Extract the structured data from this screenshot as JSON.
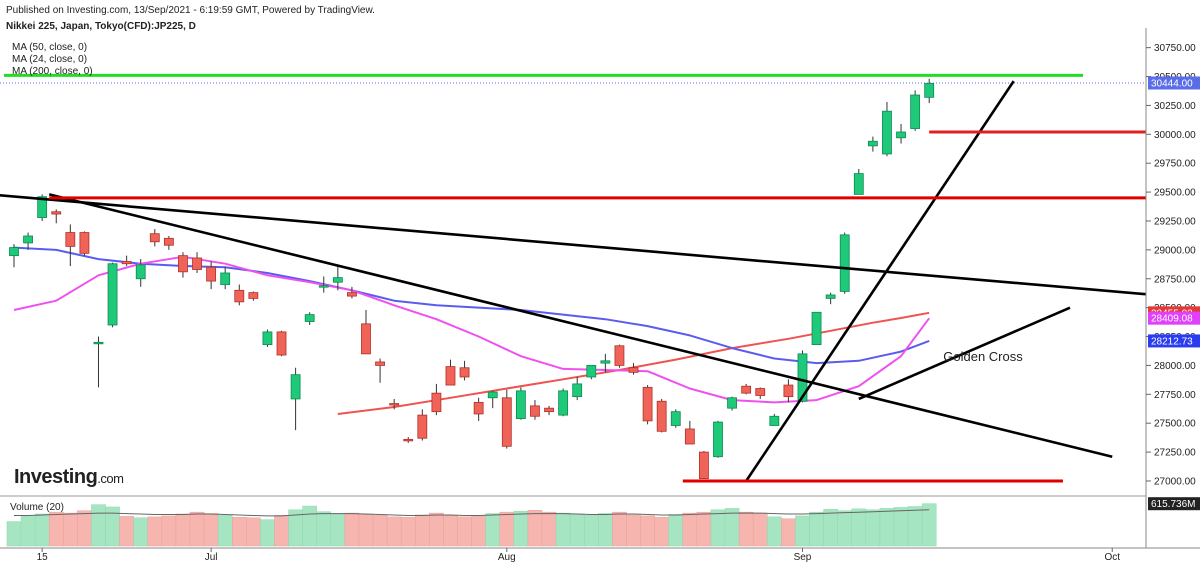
{
  "header": {
    "published": "Published on Investing.com, 13/Sep/2021 - 6:19:59 GMT, Powered by TradingView.",
    "instrument": "Nikkei 225, Japan, Tokyo(CFD):JP225, D"
  },
  "indicators": [
    "MA (50, close, 0)",
    "MA (24, close, 0)",
    "MA (200, close, 0)"
  ],
  "logo": {
    "text": "Investing",
    "suffix": ".com"
  },
  "volume_label": "Volume (20)",
  "chart_data": {
    "type": "candlestick",
    "y_ticks": [
      27000,
      27250,
      27500,
      27750,
      28000,
      28250,
      28500,
      28750,
      29000,
      29250,
      29500,
      29750,
      30000,
      30250,
      30500,
      30750
    ],
    "y_tick_labels": [
      "27000.00",
      "27250.00",
      "27500.00",
      "27750.00",
      "28000.00",
      "28250.00",
      "28500.00",
      "28750.00",
      "29000.00",
      "29250.00",
      "29500.00",
      "29750.00",
      "30000.00",
      "30250.00",
      "30500.00",
      "30750.00"
    ],
    "ylim": [
      26870,
      30920
    ],
    "x_ticks": [
      {
        "label": "15",
        "idx": 2
      },
      {
        "label": "Jul",
        "idx": 14
      },
      {
        "label": "Aug",
        "idx": 35
      },
      {
        "label": "Sep",
        "idx": 56
      },
      {
        "label": "Oct",
        "idx": 78
      }
    ],
    "candles": [
      [
        28950,
        29050,
        28850,
        29020
      ],
      [
        29060,
        29150,
        29000,
        29120
      ],
      [
        29280,
        29480,
        29250,
        29460
      ],
      [
        29330,
        29350,
        29230,
        29310
      ],
      [
        29150,
        29220,
        28860,
        29030
      ],
      [
        29150,
        29160,
        28950,
        28970
      ],
      [
        28200,
        28250,
        27810,
        28200
      ],
      [
        28350,
        28890,
        28330,
        28880
      ],
      [
        28900,
        28950,
        28860,
        28880
      ],
      [
        28750,
        28920,
        28680,
        28870
      ],
      [
        29140,
        29180,
        29030,
        29070
      ],
      [
        29100,
        29120,
        29000,
        29040
      ],
      [
        28950,
        28980,
        28760,
        28810
      ],
      [
        28930,
        28980,
        28800,
        28830
      ],
      [
        28850,
        28900,
        28660,
        28730
      ],
      [
        28700,
        28850,
        28660,
        28800
      ],
      [
        28650,
        28700,
        28520,
        28550
      ],
      [
        28630,
        28640,
        28560,
        28580
      ],
      [
        28180,
        28310,
        28160,
        28290
      ],
      [
        28290,
        28300,
        28080,
        28090
      ],
      [
        27710,
        27980,
        27440,
        27920
      ],
      [
        28380,
        28460,
        28350,
        28440
      ],
      [
        28680,
        28770,
        28630,
        28690
      ],
      [
        28720,
        28860,
        28650,
        28760
      ],
      [
        28630,
        28680,
        28580,
        28600
      ],
      [
        28360,
        28480,
        28100,
        28100
      ],
      [
        28030,
        28060,
        27850,
        28000
      ],
      [
        27670,
        27710,
        27620,
        27660
      ],
      [
        27360,
        27380,
        27330,
        27350
      ],
      [
        27570,
        27620,
        27350,
        27370
      ],
      [
        27760,
        27840,
        27570,
        27600
      ],
      [
        27990,
        28050,
        27830,
        27830
      ],
      [
        27980,
        28040,
        27870,
        27900
      ],
      [
        27680,
        27720,
        27520,
        27580
      ],
      [
        27720,
        27780,
        27630,
        27770
      ],
      [
        27720,
        27790,
        27280,
        27300
      ],
      [
        27540,
        27810,
        27530,
        27780
      ],
      [
        27650,
        27700,
        27530,
        27560
      ],
      [
        27630,
        27650,
        27570,
        27600
      ],
      [
        27570,
        27800,
        27560,
        27780
      ],
      [
        27730,
        27900,
        27700,
        27840
      ],
      [
        27900,
        27990,
        27880,
        28000
      ],
      [
        28020,
        28100,
        27940,
        28040
      ],
      [
        28170,
        28180,
        27980,
        28000
      ],
      [
        27980,
        28020,
        27920,
        27940
      ],
      [
        27810,
        27830,
        27490,
        27520
      ],
      [
        27690,
        27710,
        27420,
        27430
      ],
      [
        27480,
        27620,
        27460,
        27600
      ],
      [
        27450,
        27520,
        27320,
        27320
      ],
      [
        27250,
        27260,
        27020,
        27020
      ],
      [
        27210,
        27520,
        27200,
        27510
      ],
      [
        27630,
        27730,
        27610,
        27720
      ],
      [
        27820,
        27840,
        27750,
        27760
      ],
      [
        27800,
        27810,
        27710,
        27740
      ],
      [
        27480,
        27580,
        27480,
        27560
      ],
      [
        27830,
        27880,
        27680,
        27730
      ],
      [
        27690,
        28130,
        27680,
        28100
      ],
      [
        28180,
        28450,
        28180,
        28460
      ],
      [
        28580,
        28630,
        28530,
        28610
      ],
      [
        28640,
        29150,
        28620,
        29130
      ],
      [
        29480,
        29700,
        29480,
        29660
      ],
      [
        29900,
        29980,
        29850,
        29940
      ],
      [
        29830,
        30280,
        29810,
        30200
      ],
      [
        29970,
        30090,
        29920,
        30020
      ],
      [
        30050,
        30380,
        30030,
        30340
      ],
      [
        30320,
        30480,
        30270,
        30440
      ]
    ],
    "ma50": [
      [
        0,
        29020
      ],
      [
        3,
        29000
      ],
      [
        6,
        28920
      ],
      [
        9,
        28880
      ],
      [
        12,
        28860
      ],
      [
        15,
        28850
      ],
      [
        18,
        28800
      ],
      [
        21,
        28730
      ],
      [
        24,
        28650
      ],
      [
        27,
        28560
      ],
      [
        30,
        28520
      ],
      [
        33,
        28500
      ],
      [
        36,
        28480
      ],
      [
        39,
        28440
      ],
      [
        42,
        28400
      ],
      [
        45,
        28340
      ],
      [
        48,
        28260
      ],
      [
        51,
        28150
      ],
      [
        54,
        28060
      ],
      [
        57,
        28020
      ],
      [
        60,
        28040
      ],
      [
        63,
        28120
      ],
      [
        65,
        28212
      ]
    ],
    "ma24": [
      [
        0,
        28480
      ],
      [
        3,
        28560
      ],
      [
        6,
        28780
      ],
      [
        9,
        28880
      ],
      [
        12,
        28940
      ],
      [
        15,
        28880
      ],
      [
        18,
        28780
      ],
      [
        21,
        28720
      ],
      [
        24,
        28650
      ],
      [
        27,
        28520
      ],
      [
        30,
        28400
      ],
      [
        33,
        28250
      ],
      [
        36,
        28080
      ],
      [
        39,
        27970
      ],
      [
        42,
        27960
      ],
      [
        45,
        27950
      ],
      [
        48,
        27800
      ],
      [
        51,
        27700
      ],
      [
        54,
        27680
      ],
      [
        57,
        27700
      ],
      [
        60,
        27820
      ],
      [
        63,
        28080
      ],
      [
        65,
        28409
      ]
    ],
    "ma200": [
      [
        23,
        27580
      ],
      [
        27,
        27640
      ],
      [
        31,
        27720
      ],
      [
        35,
        27800
      ],
      [
        39,
        27880
      ],
      [
        43,
        27960
      ],
      [
        47,
        28050
      ],
      [
        51,
        28150
      ],
      [
        55,
        28230
      ],
      [
        58,
        28300
      ],
      [
        61,
        28370
      ],
      [
        63,
        28410
      ],
      [
        65,
        28455
      ]
    ],
    "trendlines": [
      {
        "color": "#000000",
        "from": [
          -2.7,
          29490
        ],
        "to": [
          81,
          28610
        ]
      },
      {
        "color": "#000000",
        "from": [
          2.5,
          29480
        ],
        "to": [
          78,
          27210
        ]
      },
      {
        "color": "#000000",
        "from": [
          52,
          27000
        ],
        "to": [
          71,
          30460
        ]
      },
      {
        "color": "#000000",
        "from": [
          60,
          27710
        ],
        "to": [
          75,
          28500
        ]
      },
      {
        "color": "#e00000",
        "from": [
          2.5,
          29450
        ],
        "to": [
          82,
          29450
        ]
      },
      {
        "color": "#e00000",
        "from": [
          47.5,
          27000
        ],
        "to": [
          74.5,
          27000
        ]
      },
      {
        "color": "#e02020",
        "from": [
          65,
          30020
        ],
        "to": [
          88.5,
          30020
        ]
      }
    ],
    "resistance": {
      "value": 30510,
      "color": "#22dd22"
    },
    "last_price_line": 30444,
    "annotation": {
      "text": "Golden Cross",
      "x_idx": 66,
      "y_value": 28040
    },
    "price_tags": [
      {
        "label": "30444.00",
        "value": 30444,
        "color": "#5a6de8"
      },
      {
        "label": "28455.02",
        "value": 28455,
        "color": "#e53935"
      },
      {
        "label": "28409.08",
        "value": 28409,
        "color": "#e040fb"
      },
      {
        "label": "28212.73",
        "value": 28212,
        "color": "#2a3cf0"
      }
    ],
    "volume": {
      "label": "Volume (20)",
      "last_label": "615.736M",
      "ylim": [
        0,
        1000
      ],
      "values": [
        520,
        630,
        680,
        720,
        700,
        750,
        880,
        830,
        630,
        600,
        620,
        640,
        680,
        720,
        690,
        650,
        610,
        600,
        560,
        650,
        770,
        850,
        730,
        690,
        700,
        670,
        650,
        620,
        610,
        660,
        700,
        650,
        620,
        640,
        690,
        720,
        740,
        760,
        720,
        700,
        680,
        650,
        690,
        720,
        660,
        640,
        610,
        670,
        700,
        720,
        770,
        800,
        720,
        700,
        620,
        580,
        640,
        720,
        780,
        750,
        790,
        770,
        800,
        820,
        840,
        900
      ],
      "ma": [
        650,
        650,
        660,
        670,
        680,
        690,
        700,
        700,
        690,
        680,
        670,
        670,
        670,
        680,
        680,
        670,
        660,
        650,
        640,
        640,
        660,
        680,
        690,
        690,
        690,
        680,
        670,
        660,
        650,
        650,
        660,
        660,
        650,
        650,
        660,
        670,
        680,
        690,
        690,
        690,
        680,
        670,
        670,
        680,
        680,
        670,
        660,
        660,
        670,
        680,
        690,
        700,
        700,
        700,
        690,
        680,
        680,
        690,
        700,
        710,
        720,
        730,
        740,
        750,
        760,
        770
      ]
    }
  }
}
